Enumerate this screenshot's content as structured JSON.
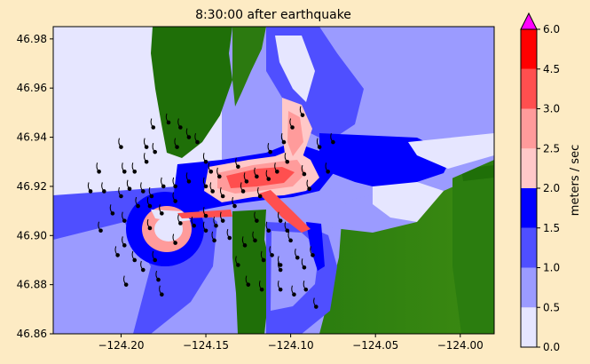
{
  "chart_data": {
    "type": "heatmap",
    "title": "8:30:00 after earthquake",
    "xlabel": "",
    "ylabel": "",
    "xlim": [
      -124.24,
      -123.98
    ],
    "ylim": [
      46.86,
      46.985
    ],
    "x_ticks": [
      -124.2,
      -124.15,
      -124.1,
      -124.05,
      -124.0
    ],
    "x_tick_labels": [
      "−124.20",
      "−124.15",
      "−124.10",
      "−124.05",
      "−124.00"
    ],
    "y_ticks": [
      46.86,
      46.88,
      46.9,
      46.92,
      46.94,
      46.96,
      46.98
    ],
    "y_tick_labels": [
      "46.86",
      "46.88",
      "46.90",
      "46.92",
      "46.94",
      "46.96",
      "46.98"
    ],
    "grid": false,
    "colorbar": {
      "label": "meters / sec",
      "levels": [
        0.0,
        0.5,
        1.0,
        1.5,
        2.0,
        2.5,
        3.0,
        4.5,
        6.0
      ],
      "tick_labels": [
        "0.0",
        "0.5",
        "1.0",
        "1.5",
        "2.0",
        "2.5",
        "3.0",
        "4.5",
        "6.0"
      ],
      "colors": [
        "#e6e6ff",
        "#9b9bff",
        "#4f4fff",
        "#0000ff",
        "#ffc8c8",
        "#ff9b9b",
        "#ff4f4f",
        "#ff0000"
      ],
      "extend_max_color": "#ff00ff"
    },
    "land_color": "#1f6f08",
    "particles": [
      [
        -124.218,
        46.918
      ],
      [
        -124.21,
        46.918
      ],
      [
        -124.213,
        46.926
      ],
      [
        -124.2,
        46.936
      ],
      [
        -124.198,
        46.926
      ],
      [
        -124.192,
        46.926
      ],
      [
        -124.185,
        46.936
      ],
      [
        -124.185,
        46.93
      ],
      [
        -124.181,
        46.944
      ],
      [
        -124.18,
        46.934
      ],
      [
        -124.172,
        46.946
      ],
      [
        -124.165,
        46.944
      ],
      [
        -124.167,
        46.936
      ],
      [
        -124.16,
        46.94
      ],
      [
        -124.155,
        46.938
      ],
      [
        -124.15,
        46.93
      ],
      [
        -124.147,
        46.926
      ],
      [
        -124.146,
        46.918
      ],
      [
        -124.2,
        46.916
      ],
      [
        -124.195,
        46.919
      ],
      [
        -124.187,
        46.918
      ],
      [
        -124.182,
        46.916
      ],
      [
        -124.175,
        46.92
      ],
      [
        -124.168,
        46.92
      ],
      [
        -124.205,
        46.909
      ],
      [
        -124.212,
        46.902
      ],
      [
        -124.198,
        46.906
      ],
      [
        -124.19,
        46.912
      ],
      [
        -124.183,
        46.912
      ],
      [
        -124.176,
        46.909
      ],
      [
        -124.168,
        46.914
      ],
      [
        -124.16,
        46.922
      ],
      [
        -124.15,
        46.92
      ],
      [
        -124.142,
        46.924
      ],
      [
        -124.14,
        46.916
      ],
      [
        -124.14,
        46.906
      ],
      [
        -124.15,
        46.908
      ],
      [
        -124.131,
        46.928
      ],
      [
        -124.126,
        46.922
      ],
      [
        -124.12,
        46.924
      ],
      [
        -124.113,
        46.923
      ],
      [
        -124.108,
        46.926
      ],
      [
        -124.102,
        46.93
      ],
      [
        -124.112,
        46.934
      ],
      [
        -124.104,
        46.938
      ],
      [
        -124.099,
        46.944
      ],
      [
        -124.093,
        46.949
      ],
      [
        -124.083,
        46.936
      ],
      [
        -124.075,
        46.938
      ],
      [
        -124.092,
        46.925
      ],
      [
        -124.089,
        46.919
      ],
      [
        -124.078,
        46.926
      ],
      [
        -124.118,
        46.916
      ],
      [
        -124.128,
        46.918
      ],
      [
        -124.133,
        46.912
      ],
      [
        -124.12,
        46.906
      ],
      [
        -124.113,
        46.902
      ],
      [
        -124.106,
        46.906
      ],
      [
        -124.102,
        46.902
      ],
      [
        -124.1,
        46.898
      ],
      [
        -124.096,
        46.891
      ],
      [
        -124.092,
        46.887
      ],
      [
        -124.091,
        46.878
      ],
      [
        -124.087,
        46.892
      ],
      [
        -124.121,
        46.898
      ],
      [
        -124.116,
        46.89
      ],
      [
        -124.111,
        46.892
      ],
      [
        -124.106,
        46.888
      ],
      [
        -124.127,
        46.896
      ],
      [
        -124.131,
        46.888
      ],
      [
        -124.136,
        46.899
      ],
      [
        -124.144,
        46.904
      ],
      [
        -124.145,
        46.898
      ],
      [
        -124.15,
        46.902
      ],
      [
        -124.157,
        46.904
      ],
      [
        -124.165,
        46.905
      ],
      [
        -124.198,
        46.896
      ],
      [
        -124.202,
        46.892
      ],
      [
        -124.197,
        46.88
      ],
      [
        -124.192,
        46.89
      ],
      [
        -124.187,
        46.886
      ],
      [
        -124.18,
        46.89
      ],
      [
        -124.178,
        46.882
      ],
      [
        -124.176,
        46.876
      ],
      [
        -124.183,
        46.903
      ],
      [
        -124.168,
        46.897
      ],
      [
        -124.125,
        46.88
      ],
      [
        -124.117,
        46.878
      ],
      [
        -124.106,
        46.878
      ],
      [
        -124.106,
        46.886
      ],
      [
        -124.098,
        46.876
      ],
      [
        -124.085,
        46.871
      ]
    ]
  }
}
